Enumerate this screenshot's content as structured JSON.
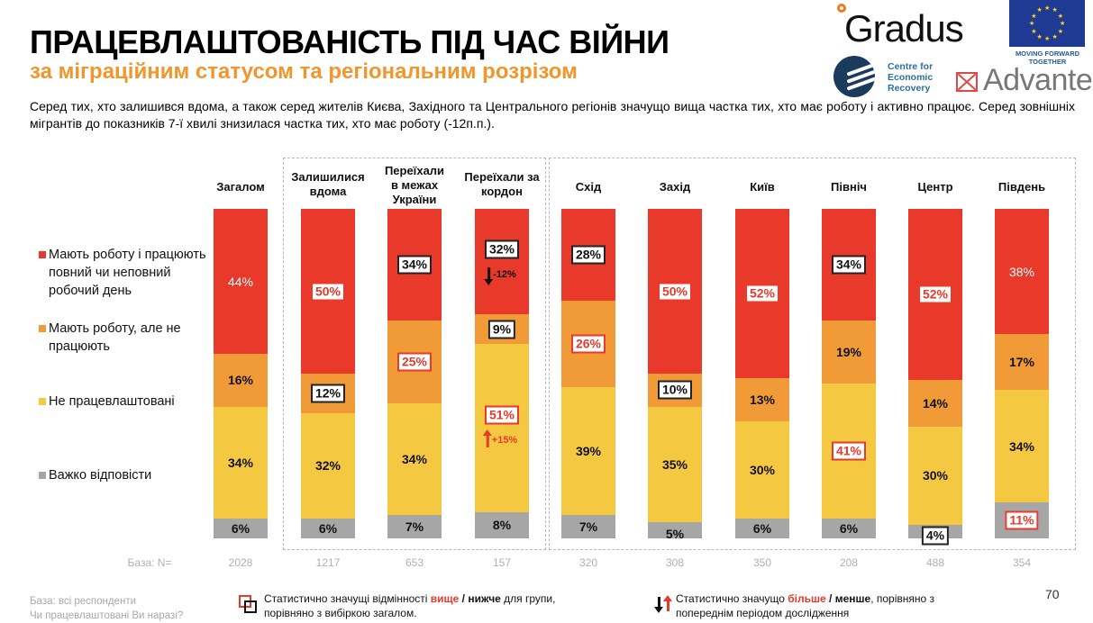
{
  "header": {
    "title": "ПРАЦЕВЛАШТОВАНІСТЬ ПІД ЧАС ВІЙНИ",
    "subtitle": "за міграційним статусом та регіональним розрізом",
    "description": "Серед тих, хто залишився вдома, а також серед жителів Києва, Західного та Центрального регіонів значущо вища частка тих, хто має роботу і активно працює. Серед зовнішніх мігрантів до показників 7-ї хвилі знизилася частка тих, хто має роботу (-12п.п.)."
  },
  "logos": {
    "gradus": "Gradus",
    "eu_text": "MOVING FORWARD TOGETHER",
    "cer_line1": "Centre for",
    "cer_line2": "Economic",
    "cer_line3": "Recovery",
    "advanter": "Advanter"
  },
  "colors": {
    "work_full": "#e8392a",
    "work_not": "#f09b38",
    "unemployed": "#f5c842",
    "hard": "#a6a6a6",
    "accent_orange": "#f0962d",
    "significant_red": "#e8392a"
  },
  "chart_data": {
    "type": "bar",
    "stacked": true,
    "orientation": "vertical",
    "normalized_percent": true,
    "title": "ПРАЦЕВЛАШТОВАНІСТЬ ПІД ЧАС ВІЙНИ",
    "subtitle": "за міграційним статусом та регіональним розрізом",
    "categories": [
      "Загалом",
      "Залишилися вдома",
      "Переїхали в межах України",
      "Переїхали за кордон",
      "Схід",
      "Захід",
      "Київ",
      "Північ",
      "Центр",
      "Південь"
    ],
    "base_label": "База: N=",
    "base_n": [
      "2028",
      "1217",
      "653",
      "157",
      "320",
      "308",
      "350",
      "208",
      "488",
      "354"
    ],
    "series": [
      {
        "key": "work_full",
        "name": "Мають роботу і працюють повний чи неповний робочий день",
        "values": [
          44,
          50,
          34,
          32,
          28,
          50,
          52,
          34,
          52,
          38
        ]
      },
      {
        "key": "work_not",
        "name": "Мають роботу, але не працюють",
        "values": [
          16,
          12,
          25,
          9,
          26,
          10,
          13,
          19,
          14,
          17
        ]
      },
      {
        "key": "unemployed",
        "name": "Не працевлаштовані",
        "values": [
          34,
          32,
          34,
          51,
          39,
          35,
          30,
          41,
          30,
          34
        ]
      },
      {
        "key": "hard",
        "name": "Важко відповісти",
        "values": [
          6,
          6,
          7,
          8,
          7,
          5,
          6,
          6,
          4,
          11
        ]
      }
    ],
    "significance": [
      [
        "none",
        "higher",
        "lower",
        "lower",
        "lower",
        "higher",
        "higher",
        "lower",
        "higher",
        "none"
      ],
      [
        "none",
        "lower",
        "higher",
        "lower",
        "higher",
        "lower",
        "none",
        "none",
        "none",
        "none"
      ],
      [
        "none",
        "none",
        "none",
        "higher",
        "none",
        "none",
        "none",
        "higher",
        "none",
        "none"
      ],
      [
        "none",
        "none",
        "none",
        "none",
        "none",
        "none",
        "none",
        "none",
        "lower",
        "higher"
      ]
    ],
    "changes": [
      {
        "category": "Переїхали за кордон",
        "series": "work_full",
        "direction": "down",
        "label": "-12%"
      },
      {
        "category": "Переїхали за кордон",
        "series": "unemployed",
        "direction": "up",
        "label": "+15%"
      }
    ],
    "groups": [
      {
        "name": "migration",
        "categories": [
          "Залишилися вдома",
          "Переїхали в межах України",
          "Переїхали за кордон"
        ]
      },
      {
        "name": "regions",
        "categories": [
          "Схід",
          "Захід",
          "Київ",
          "Північ",
          "Центр",
          "Південь"
        ]
      }
    ],
    "ylim": [
      0,
      100
    ],
    "legend_position": "left"
  },
  "footer": {
    "base_line1": "База: всі респонденти",
    "base_line2": "Чи працевлаштовані Ви наразі?",
    "sig_text_pre": "Статистично значущі відмінності ",
    "sig_higher": "вище",
    "sig_sep": " / ",
    "sig_lower": "нижче",
    "sig_text_post": " для групи,",
    "sig_line2": "порівняно з вибіркою загалом.",
    "chg_text_pre": "Статистично значущо ",
    "chg_more": "більше",
    "chg_sep": " / ",
    "chg_less": "менше",
    "chg_text_post": ", порівняно з",
    "chg_line2": "попереднім періодом дослідження",
    "page_number": "70"
  }
}
